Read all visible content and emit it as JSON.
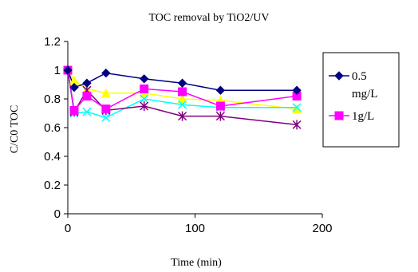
{
  "chart_data": {
    "type": "line",
    "title": "TOC removal by TiO2/UV",
    "xlabel": "Time (min)",
    "ylabel": "C/C0 TOC",
    "xlim": [
      0,
      200
    ],
    "ylim": [
      0,
      1.2
    ],
    "x_ticks": [
      "0",
      "100",
      "200"
    ],
    "y_ticks": [
      "0",
      "0.2",
      "0.4",
      "0.6",
      "0.8",
      "1",
      "1.2"
    ],
    "grid": false,
    "legend_position": "right",
    "series": [
      {
        "name": "0.5 mg/L",
        "marker": "diamond",
        "color": "#000080",
        "x": [
          0,
          5,
          15,
          30,
          60,
          90,
          120,
          180
        ],
        "y": [
          1.0,
          0.88,
          0.91,
          0.98,
          0.94,
          0.91,
          0.86,
          0.86
        ]
      },
      {
        "name": "1g/L",
        "marker": "square",
        "color": "#FF00FF",
        "x": [
          0,
          5,
          15,
          30,
          60,
          90,
          120,
          180
        ],
        "y": [
          1.0,
          0.72,
          0.82,
          0.73,
          0.87,
          0.85,
          0.75,
          0.82
        ]
      },
      {
        "name": "",
        "marker": "triangle",
        "color": "#FFFF00",
        "x": [
          0,
          5,
          15,
          30,
          60,
          90,
          120,
          180
        ],
        "y": [
          1.0,
          0.93,
          0.87,
          0.84,
          0.84,
          0.8,
          0.79,
          0.73
        ]
      },
      {
        "name": "",
        "marker": "x",
        "color": "#00FFFF",
        "x": [
          0,
          5,
          15,
          30,
          60,
          90,
          120,
          180
        ],
        "y": [
          1.0,
          0.7,
          0.71,
          0.67,
          0.8,
          0.76,
          0.74,
          0.74
        ]
      },
      {
        "name": "",
        "marker": "star",
        "color": "#800080",
        "x": [
          0,
          5,
          15,
          30,
          60,
          90,
          120,
          180
        ],
        "y": [
          1.0,
          0.71,
          0.86,
          0.72,
          0.75,
          0.68,
          0.68,
          0.62
        ]
      }
    ],
    "legend": {
      "entries": [
        {
          "line1": "0.5",
          "line2": "mg/L",
          "series_index": 0
        },
        {
          "line1": "1g/L",
          "line2": "",
          "series_index": 1
        }
      ]
    }
  }
}
